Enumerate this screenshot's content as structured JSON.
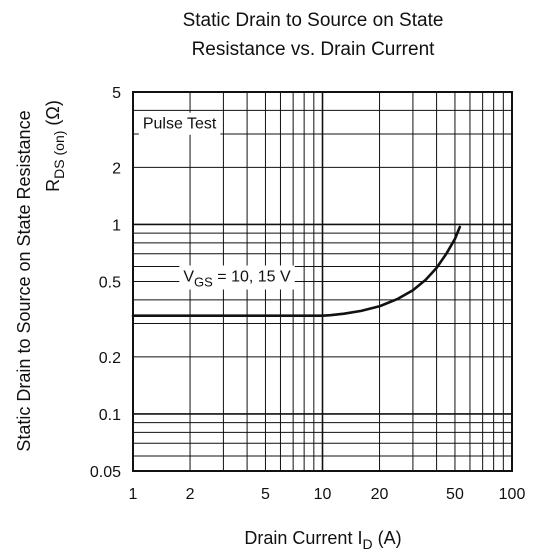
{
  "chart_data": {
    "type": "line",
    "title": "Static Drain to Source on State Resistance vs. Drain Current",
    "title_lines": [
      "Static Drain to Source on State",
      "Resistance vs. Drain Current"
    ],
    "xlabel": {
      "text": "Drain Current  I",
      "sub": "D",
      "unit": "  (A)"
    },
    "ylabel": {
      "line1": "Static Drain to Source on State Resistance",
      "line2_main": "R",
      "line2_sub": "DS (on)",
      "line2_unit": "  (Ω)"
    },
    "x_scale": "log",
    "y_scale": "log",
    "xlim": [
      1,
      100
    ],
    "ylim": [
      0.05,
      5
    ],
    "x_ticks": [
      {
        "value": 1,
        "label": "1"
      },
      {
        "value": 2,
        "label": "2"
      },
      {
        "value": 5,
        "label": "5"
      },
      {
        "value": 10,
        "label": "10"
      },
      {
        "value": 20,
        "label": "20"
      },
      {
        "value": 50,
        "label": "50"
      },
      {
        "value": 100,
        "label": "100"
      }
    ],
    "y_ticks": [
      {
        "value": 0.05,
        "label": "0.05"
      },
      {
        "value": 0.1,
        "label": "0.1"
      },
      {
        "value": 0.2,
        "label": "0.2"
      },
      {
        "value": 0.5,
        "label": "0.5"
      },
      {
        "value": 1,
        "label": "1"
      },
      {
        "value": 2,
        "label": "2"
      },
      {
        "value": 5,
        "label": "5"
      }
    ],
    "grid": true,
    "annotations": [
      {
        "text": "Pulse Test",
        "x": 1.1,
        "y": 3.2
      },
      {
        "text_main": "V",
        "text_sub": "GS",
        "text_rest": " = 10, 15 V",
        "x": 1.8,
        "y": 0.5
      }
    ],
    "series": [
      {
        "name": "VGS = 10, 15 V",
        "x": [
          1,
          5,
          10,
          11,
          13,
          16,
          20,
          25,
          30,
          35,
          40,
          45,
          50,
          53
        ],
        "y": [
          0.33,
          0.33,
          0.33,
          0.332,
          0.338,
          0.35,
          0.37,
          0.405,
          0.45,
          0.51,
          0.59,
          0.7,
          0.84,
          0.97
        ]
      }
    ]
  }
}
